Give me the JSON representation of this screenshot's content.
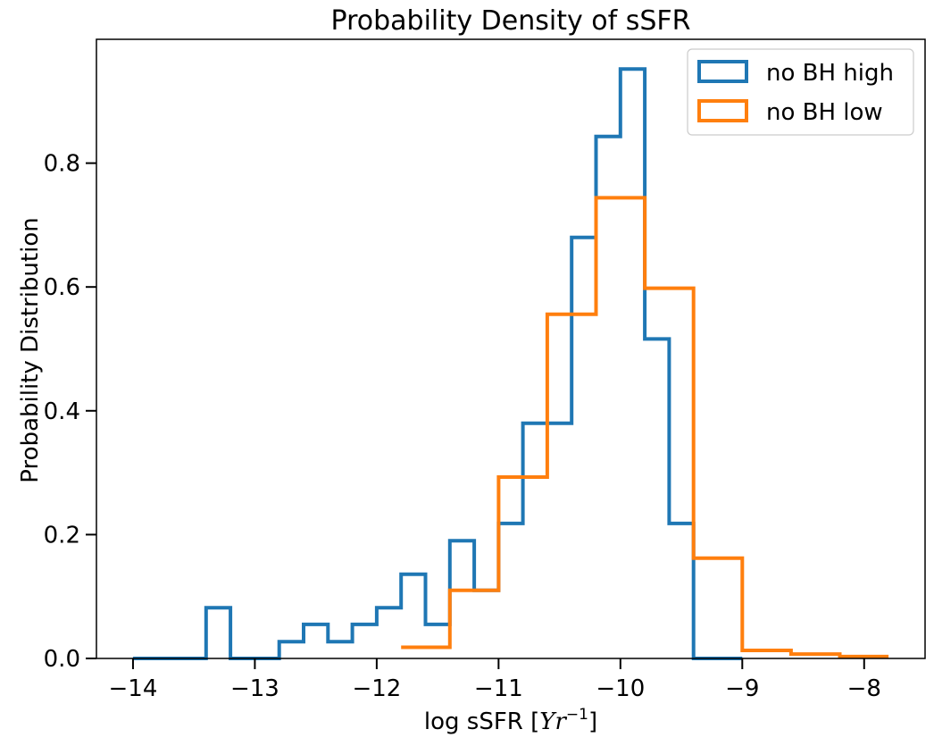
{
  "chart_data": {
    "type": "step-histogram",
    "title": "Probability Density of sSFR",
    "xlabel_text": "log sSFR [",
    "xlabel_math": "Yr",
    "xlabel_sup": "−1",
    "xlabel_close": "]",
    "ylabel": "Probability Distribution",
    "xlim": [
      -14.3,
      -7.5
    ],
    "ylim": [
      0,
      1.0
    ],
    "xticks": [
      -14,
      -13,
      -12,
      -11,
      -10,
      -9,
      -8
    ],
    "xtick_labels": [
      "−14",
      "−13",
      "−12",
      "−11",
      "−10",
      "−9",
      "−8"
    ],
    "yticks": [
      0.0,
      0.2,
      0.4,
      0.6,
      0.8
    ],
    "ytick_labels": [
      "0.0",
      "0.2",
      "0.4",
      "0.6",
      "0.8"
    ],
    "legend_position": "top-right",
    "series": [
      {
        "name": "no BH high",
        "color": "#1f77b4",
        "bin_edges": [
          -14.0,
          -13.8,
          -13.6,
          -13.4,
          -13.2,
          -13.0,
          -12.8,
          -12.6,
          -12.4,
          -12.2,
          -12.0,
          -11.8,
          -11.6,
          -11.4,
          -11.2,
          -11.0,
          -10.8,
          -10.6,
          -10.4,
          -10.2,
          -10.0,
          -9.8,
          -9.6,
          -9.4,
          -9.2,
          -9.0
        ],
        "values": [
          0,
          0,
          0,
          0.082,
          0,
          0,
          0.027,
          0.055,
          0.027,
          0.055,
          0.082,
          0.136,
          0.055,
          0.19,
          0.11,
          0.218,
          0.38,
          0.38,
          0.68,
          0.843,
          0.952,
          0.516,
          0.218,
          0,
          0
        ]
      },
      {
        "name": "no BH low",
        "color": "#ff7f0e",
        "bin_edges": [
          -11.8,
          -11.4,
          -11.0,
          -10.6,
          -10.2,
          -9.8,
          -9.4,
          -9.0,
          -8.6,
          -8.2,
          -7.8
        ],
        "values": [
          0.018,
          0.11,
          0.293,
          0.556,
          0.744,
          0.598,
          0.162,
          0.013,
          0.007,
          0.003
        ]
      }
    ]
  }
}
